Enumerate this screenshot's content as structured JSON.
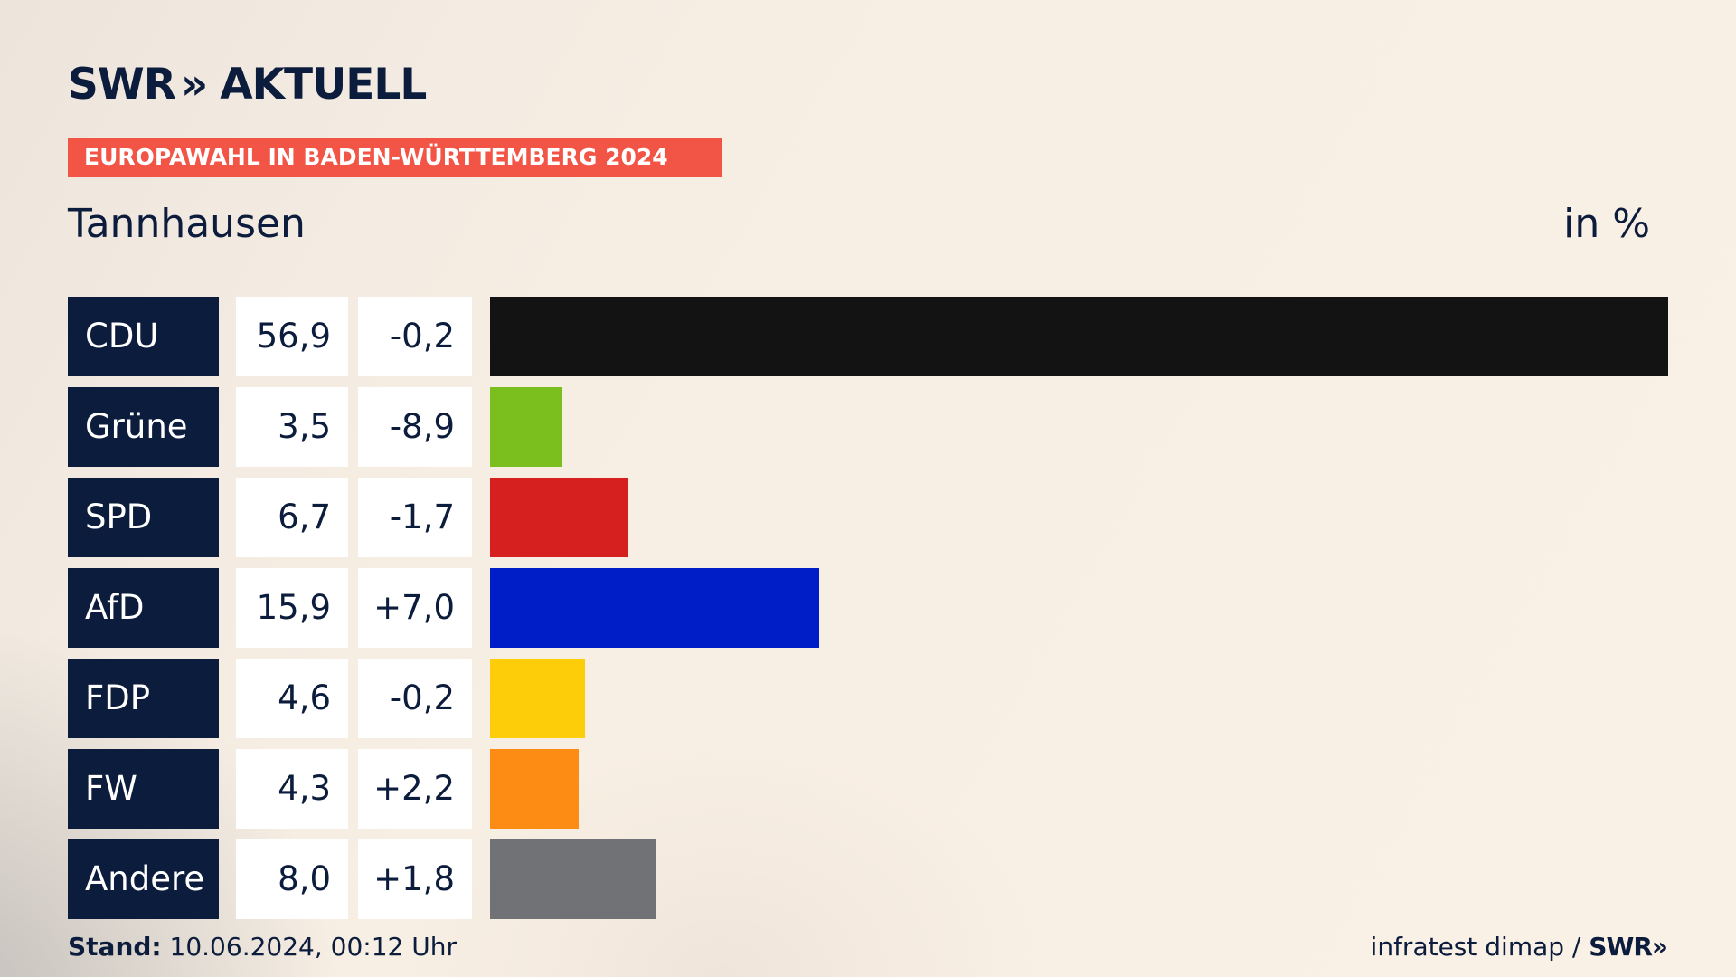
{
  "header": {
    "brand": "SWR",
    "brand_chevrons": "»",
    "product": "AKTUELL",
    "banner": "EUROPAWAHL IN BADEN-WÜRTTEMBERG 2024",
    "place": "Tannhausen",
    "unit": "in %"
  },
  "footer": {
    "stand_label": "Stand:",
    "stand_value": "10.06.2024, 00:12 Uhr",
    "source": "infratest dimap /",
    "source_brand": "SWR",
    "source_brand_chevrons": "»"
  },
  "colors": {
    "text_dark": "#0c1c3c",
    "banner": "#f25445"
  },
  "chart_data": {
    "type": "bar",
    "orientation": "horizontal",
    "categories": [
      "CDU",
      "Grüne",
      "SPD",
      "AfD",
      "FDP",
      "FW",
      "Andere"
    ],
    "values": [
      56.9,
      3.5,
      6.7,
      15.9,
      4.6,
      4.3,
      8.0
    ],
    "value_labels": [
      "56,9",
      "3,5",
      "6,7",
      "15,9",
      "4,6",
      "4,3",
      "8,0"
    ],
    "changes": [
      -0.2,
      -8.9,
      -1.7,
      7.0,
      -0.2,
      2.2,
      1.8
    ],
    "change_labels": [
      "-0,2",
      "-8,9",
      "-1,7",
      "+7,0",
      "-0,2",
      "+2,2",
      "+1,8"
    ],
    "colors": [
      "#131313",
      "#7abf1e",
      "#d61f1f",
      "#001ec8",
      "#fecd0a",
      "#fd8c15",
      "#707275"
    ],
    "xlim": [
      0,
      56.9
    ],
    "grid": false
  }
}
